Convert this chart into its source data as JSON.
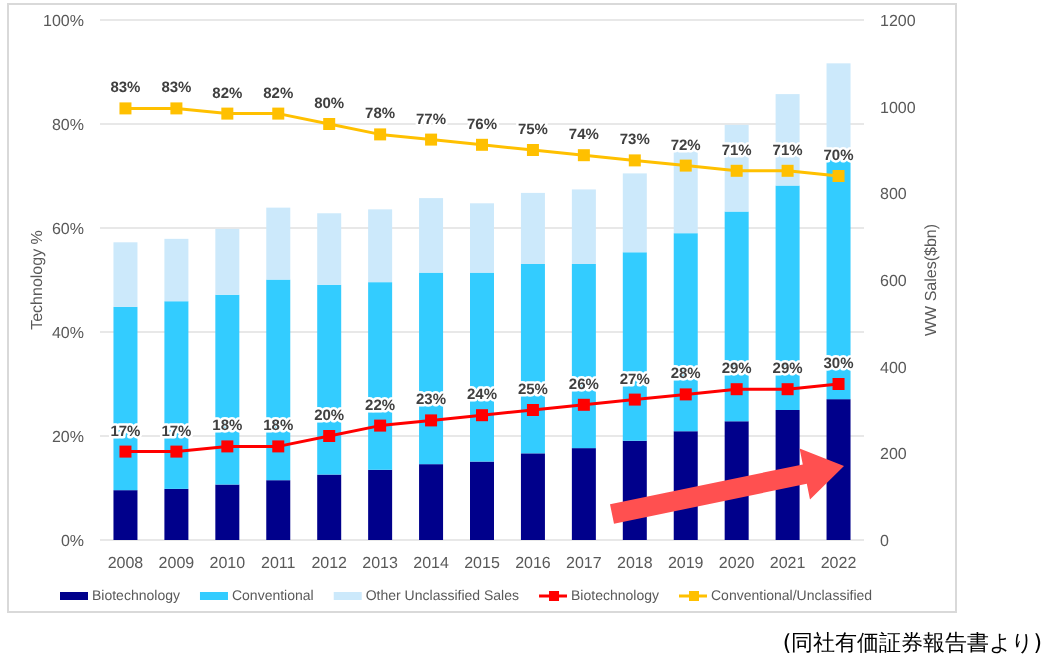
{
  "chart_data": {
    "type": "bar",
    "stacked": true,
    "ylabel": "Technology %",
    "y2label": "WW Sales($bn)",
    "categories": [
      "2008",
      "2009",
      "2010",
      "2011",
      "2012",
      "2013",
      "2014",
      "2015",
      "2016",
      "2017",
      "2018",
      "2019",
      "2020",
      "2021",
      "2022"
    ],
    "series": [
      {
        "name": "Biotechnology",
        "type": "bar",
        "axis": "y2",
        "color": "#00008b",
        "values": [
          115,
          118,
          128,
          138,
          151,
          162,
          175,
          181,
          200,
          212,
          229,
          251,
          274,
          300,
          325
        ]
      },
      {
        "name": "Conventional",
        "type": "bar",
        "axis": "y2",
        "color": "#33ccff",
        "values": [
          423,
          433,
          438,
          463,
          438,
          433,
          442,
          436,
          437,
          425,
          435,
          457,
          484,
          518,
          552
        ]
      },
      {
        "name": "Other Unclassified Sales",
        "type": "bar",
        "axis": "y2",
        "color": "#cce9fb",
        "values": [
          149,
          144,
          152,
          166,
          165,
          168,
          172,
          160,
          164,
          172,
          182,
          189,
          200,
          211,
          223
        ]
      },
      {
        "name": "Biotechnology",
        "type": "line",
        "axis": "y",
        "color": "#ff0000",
        "values": [
          17,
          17,
          18,
          18,
          20,
          22,
          23,
          24,
          25,
          26,
          27,
          28,
          29,
          29,
          30
        ],
        "value_labels": [
          "17%",
          "17%",
          "18%",
          "18%",
          "20%",
          "22%",
          "23%",
          "24%",
          "25%",
          "26%",
          "27%",
          "28%",
          "29%",
          "29%",
          "30%"
        ]
      },
      {
        "name": "Conventional/Unclassified",
        "type": "line",
        "axis": "y",
        "color": "#ffc000",
        "values": [
          83,
          83,
          82,
          82,
          80,
          78,
          77,
          76,
          75,
          74,
          73,
          72,
          71,
          71,
          70
        ],
        "value_labels": [
          "83%",
          "83%",
          "82%",
          "82%",
          "80%",
          "78%",
          "77%",
          "76%",
          "75%",
          "74%",
          "73%",
          "72%",
          "71%",
          "71%",
          "70%"
        ]
      }
    ],
    "ylim": [
      0,
      100
    ],
    "yticks": [
      {
        "value": 0,
        "label": "0%"
      },
      {
        "value": 20,
        "label": "20%"
      },
      {
        "value": 40,
        "label": "40%"
      },
      {
        "value": 60,
        "label": "60%"
      },
      {
        "value": 80,
        "label": "80%"
      },
      {
        "value": 100,
        "label": "100%"
      }
    ],
    "y2lim": [
      0,
      1200
    ],
    "y2ticks": [
      0,
      200,
      400,
      600,
      800,
      1000,
      1200
    ],
    "grid": "y",
    "legend": "bottom",
    "marker": "square",
    "annotations": [
      "(同社有価証券報告書より)"
    ]
  }
}
